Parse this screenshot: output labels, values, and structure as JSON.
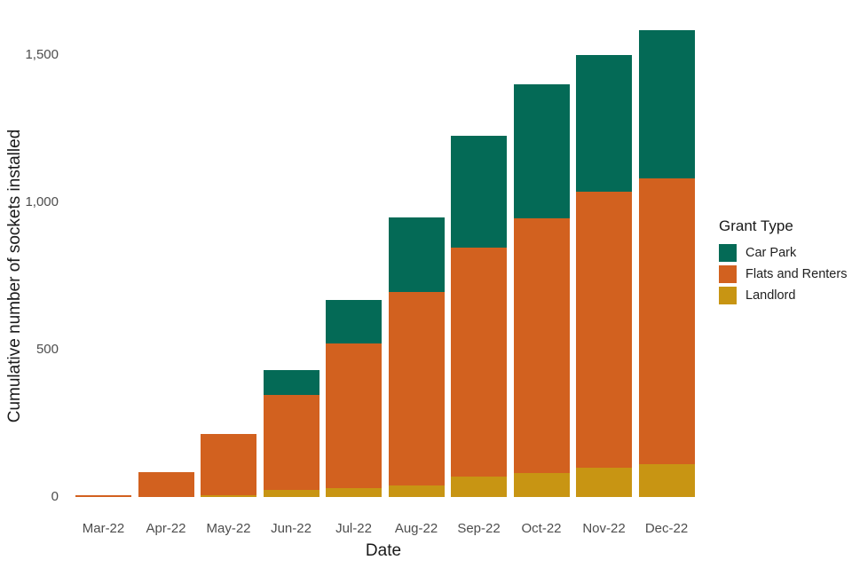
{
  "chart_data": {
    "type": "bar",
    "stacked": true,
    "title": "",
    "xlabel": "Date",
    "ylabel": "Cumulative number of sockets installed",
    "categories": [
      "Mar-22",
      "Apr-22",
      "May-22",
      "Jun-22",
      "Jul-22",
      "Aug-22",
      "Sep-22",
      "Oct-22",
      "Nov-22",
      "Dec-22"
    ],
    "series": [
      {
        "name": "Landlord",
        "color": "#c89513",
        "values": [
          0,
          0,
          5,
          25,
          30,
          40,
          70,
          80,
          100,
          110
        ]
      },
      {
        "name": "Flats and Renters",
        "color": "#d2611f",
        "values": [
          5,
          85,
          210,
          320,
          490,
          655,
          775,
          865,
          935,
          970
        ]
      },
      {
        "name": "Car Park",
        "color": "#046a56",
        "values": [
          0,
          0,
          0,
          85,
          150,
          255,
          380,
          455,
          465,
          505
        ]
      }
    ],
    "totals": [
      5,
      85,
      215,
      430,
      670,
      950,
      1225,
      1400,
      1500,
      1585
    ],
    "ylim": [
      0,
      1640
    ],
    "y_ticks": [
      {
        "value": 0,
        "label": "0"
      },
      {
        "value": 500,
        "label": "500"
      },
      {
        "value": 1000,
        "label": "1,000"
      },
      {
        "value": 1500,
        "label": "1,500"
      }
    ],
    "grid": "off",
    "legend_position": "right"
  },
  "axes": {
    "x_title": "Date",
    "y_title": "Cumulative number of sockets installed"
  },
  "legend": {
    "title": "Grant Type",
    "items": [
      {
        "label": "Car Park",
        "color": "#046a56"
      },
      {
        "label": "Flats and Renters",
        "color": "#d2611f"
      },
      {
        "label": "Landlord",
        "color": "#c89513"
      }
    ]
  },
  "colors": {
    "car_park": "#046a56",
    "flats_and_renters": "#d2611f",
    "landlord": "#c89513",
    "tick_text": "#4d4d4d",
    "title_text": "#1a1a1a",
    "background": "#ffffff"
  }
}
